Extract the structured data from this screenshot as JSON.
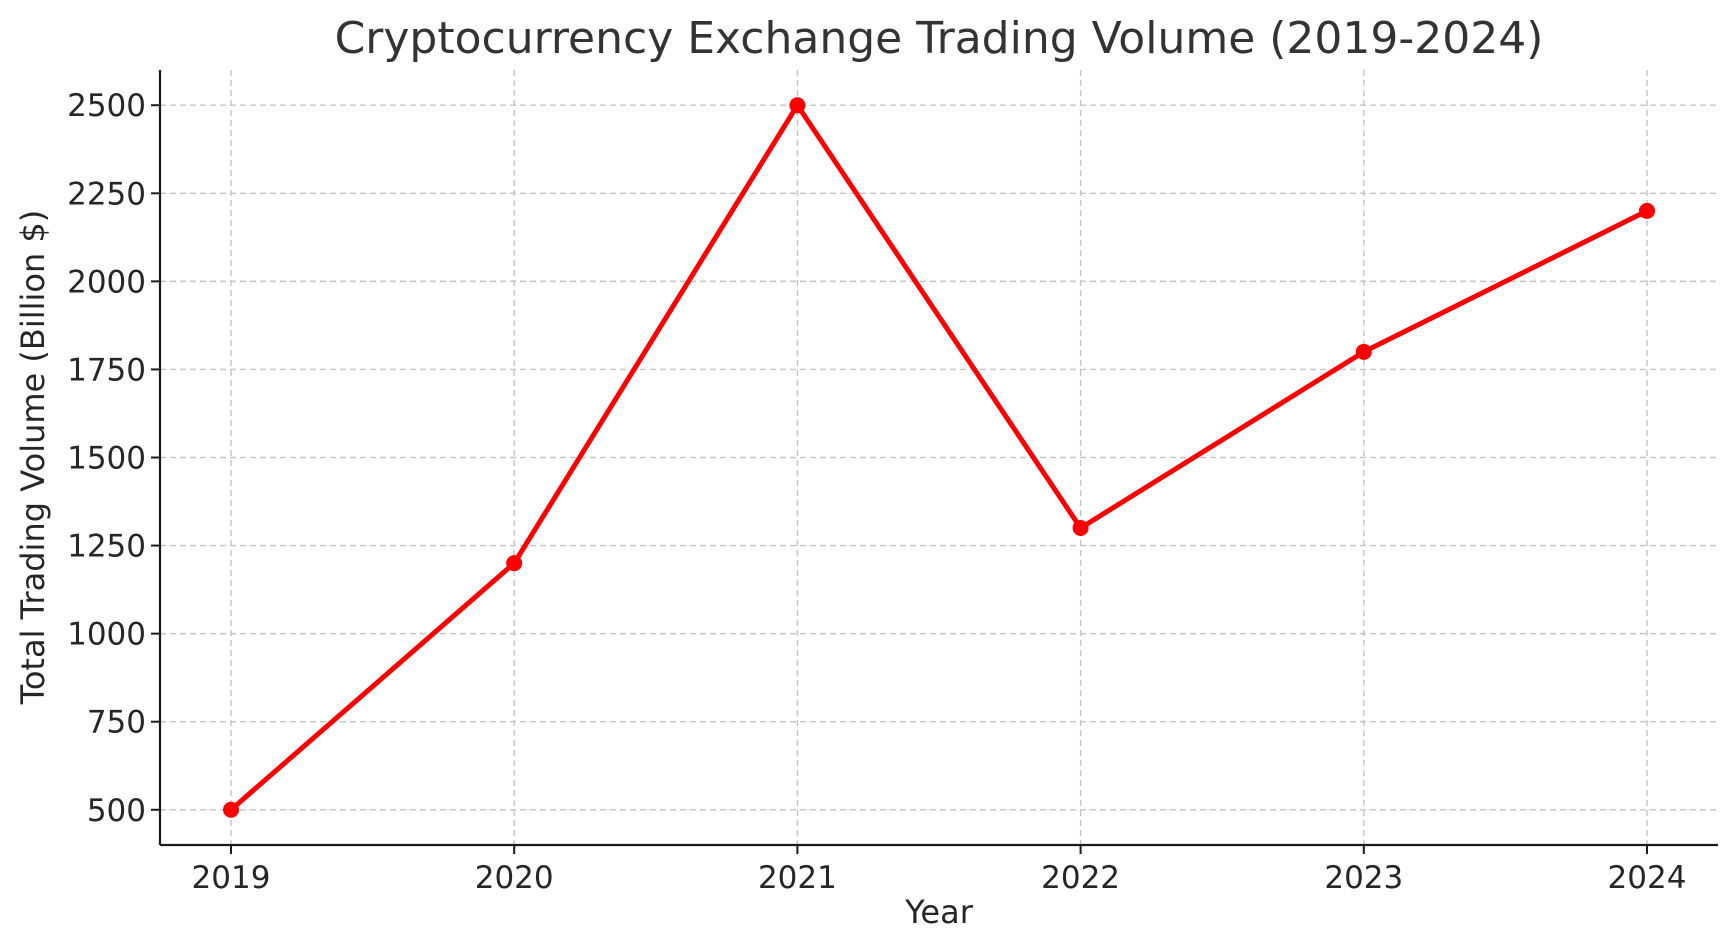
{
  "chart_data": {
    "type": "line",
    "title": "Cryptocurrency Exchange Trading Volume (2019-2024)",
    "xlabel": "Year",
    "ylabel": "Total Trading Volume (Billion $)",
    "categories": [
      "2019",
      "2020",
      "2021",
      "2022",
      "2023",
      "2024"
    ],
    "series": [
      {
        "values": [
          500,
          1200,
          2500,
          1300,
          1800,
          2200
        ],
        "color": "#ff0000",
        "marker": "circle"
      }
    ],
    "ylim": [
      400,
      2600
    ],
    "yticks": [
      500,
      750,
      1000,
      1250,
      1500,
      1750,
      2000,
      2250,
      2500
    ],
    "grid": true,
    "legend": "none"
  }
}
